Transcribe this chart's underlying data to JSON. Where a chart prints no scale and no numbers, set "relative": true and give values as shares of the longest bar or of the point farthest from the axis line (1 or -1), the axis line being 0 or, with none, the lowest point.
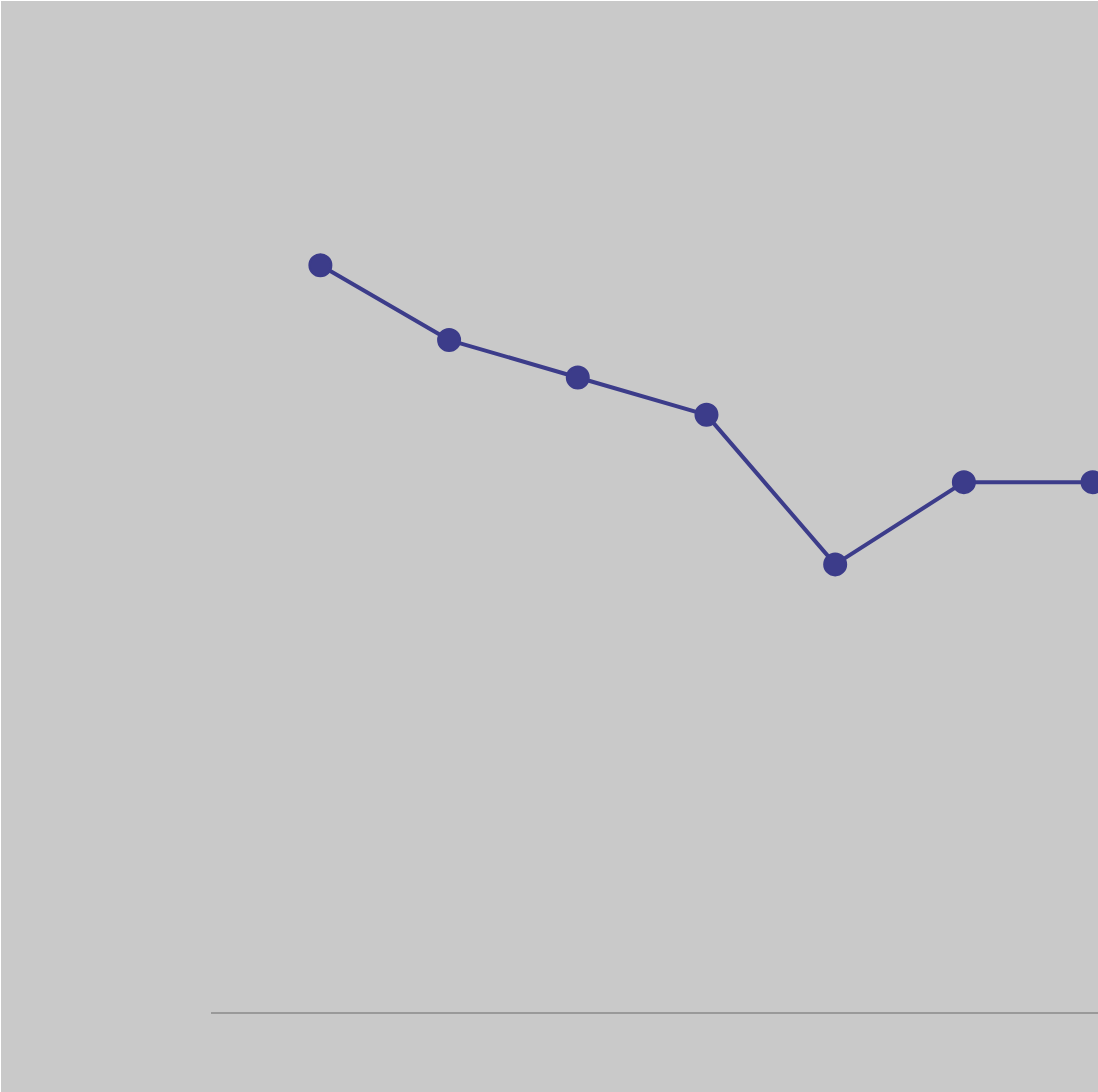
{
  "chart_data": {
    "type": "line",
    "relative": true,
    "categories": [
      null,
      null,
      null,
      null,
      null,
      null,
      null
    ],
    "series": [
      {
        "color": "#3c3c8a",
        "values": [
          1,
          0.9,
          0.85,
          0.8,
          0.6,
          0.71,
          0.71
        ]
      }
    ],
    "marker": "circle",
    "line_style": "solid",
    "grid": false
  }
}
